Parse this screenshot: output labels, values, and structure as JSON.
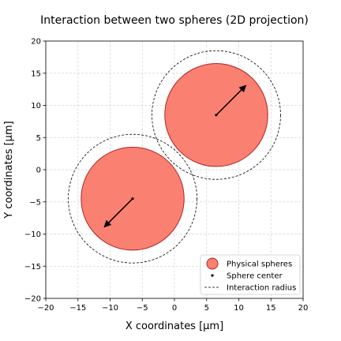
{
  "chart_data": {
    "type": "scatter",
    "title": "Interaction between two spheres (2D projection)",
    "xlabel": "X coordinates [μm]",
    "ylabel": "Y coordinates [μm]",
    "xlim": [
      -20,
      20
    ],
    "ylim": [
      -20,
      20
    ],
    "xticks": [
      -20,
      -15,
      -10,
      -5,
      0,
      5,
      10,
      15,
      20
    ],
    "yticks": [
      -20,
      -15,
      -10,
      -5,
      0,
      5,
      10,
      15,
      20
    ],
    "xtick_labels": [
      "−20",
      "−15",
      "−10",
      "−5",
      "0",
      "5",
      "10",
      "15",
      "20"
    ],
    "ytick_labels": [
      "−20",
      "−15",
      "−10",
      "−5",
      "0",
      "5",
      "10",
      "15",
      "20"
    ],
    "grid": true,
    "legend_position": "lower-right",
    "legend": [
      {
        "label": "Physical spheres",
        "kind": "circle"
      },
      {
        "label": "Sphere center",
        "kind": "point"
      },
      {
        "label": "Interaction radius",
        "kind": "dashed-line"
      }
    ],
    "spheres": [
      {
        "center": [
          6.5,
          8.5
        ],
        "radius": 8,
        "interaction_radius": 10,
        "velocity": [
          4.6,
          4.6
        ]
      },
      {
        "center": [
          -6.5,
          -4.5
        ],
        "radius": 8,
        "interaction_radius": 10,
        "velocity": [
          -4.4,
          -4.4
        ]
      }
    ],
    "colors": {
      "sphere_fill": "#fa8072",
      "sphere_edge": "#b22222",
      "center": "#000000",
      "interaction": "#000000",
      "arrow": "#000000",
      "grid": "#d3d3d3"
    }
  }
}
